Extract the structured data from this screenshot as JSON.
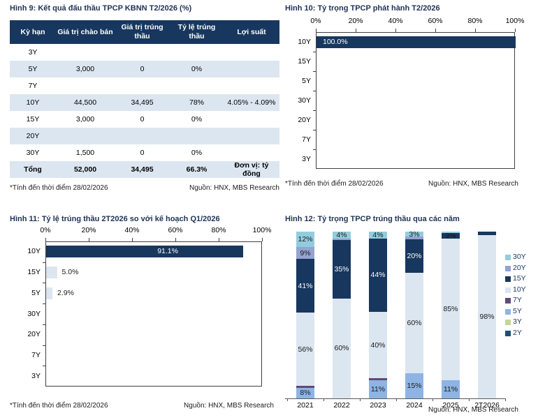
{
  "fig9": {
    "title": "Hình 9: Kết quả đấu thầu TPCP KBNN T2/2026 (%)",
    "headers": [
      "Kỳ hạn",
      "Giá trị chào bán",
      "Giá trị trúng thầu",
      "Tỷ lệ trúng thầu",
      "Lợi suất"
    ],
    "rows": [
      [
        "3Y",
        "",
        "",
        "",
        ""
      ],
      [
        "5Y",
        "3,000",
        "0",
        "0%",
        ""
      ],
      [
        "7Y",
        "",
        "",
        "",
        ""
      ],
      [
        "10Y",
        "44,500",
        "34,495",
        "78%",
        "4.05% - 4.09%"
      ],
      [
        "15Y",
        "3,000",
        "0",
        "0%",
        ""
      ],
      [
        "20Y",
        "",
        "",
        "",
        ""
      ],
      [
        "30Y",
        "1,500",
        "0",
        "0%",
        ""
      ],
      [
        "Tổng",
        "52,000",
        "34,495",
        "66.3%",
        "Đơn vị: tỷ đồng"
      ]
    ],
    "footnote_left": "*Tính đến thời điểm 28/02/2026",
    "footnote_right": "Nguồn: HNX, MBS Research"
  },
  "fig10": {
    "title": "Hình 10: Tỷ trọng TPCP phát hành T2/2026",
    "footnote_left": "*Tính đến thời điểm 28/02/2026",
    "footnote_right": "Nguồn: HNX, MBS Research"
  },
  "fig11": {
    "title": "Hình 11: Tỷ lệ trúng thầu 2T2026 so với kế hoạch Q1/2026",
    "footnote_left": "*Tính đến thời điểm 28/02/2026",
    "footnote_right": "Nguồn: HNX, MBS Research"
  },
  "fig12": {
    "title": "Hình 12: Tỷ trọng TPCP trúng thầu qua các năm",
    "footnote_right": "Nguồn: HNX, MBS Research"
  },
  "chart_data": [
    {
      "id": "fig10",
      "type": "bar",
      "orientation": "horizontal",
      "title": "Hình 10: Tỷ trọng TPCP phát hành T2/2026",
      "categories": [
        "10Y",
        "15Y",
        "5Y",
        "30Y",
        "20Y",
        "7Y",
        "3Y"
      ],
      "values": [
        100.0,
        0,
        0,
        0,
        0,
        0,
        0
      ],
      "labels": [
        "100.0%",
        "",
        "",
        "",
        "",
        "",
        ""
      ],
      "bar_colors": [
        "#17375E",
        "#DCE6F1",
        "#DCE6F1",
        "#DCE6F1",
        "#DCE6F1",
        "#DCE6F1",
        "#DCE6F1"
      ],
      "label_align": "inside-start",
      "inside_label_color": "#FFFFFF",
      "xlim": [
        0,
        100
      ],
      "xticks": [
        "0%",
        "20%",
        "40%",
        "60%",
        "80%",
        "100%"
      ],
      "grid": false
    },
    {
      "id": "fig11",
      "type": "bar",
      "orientation": "horizontal",
      "title": "Hình 11: Tỷ lệ trúng thầu 2T2026 so với kế hoạch Q1/2026",
      "categories": [
        "10Y",
        "15Y",
        "5Y",
        "30Y",
        "20Y",
        "7Y",
        "3Y"
      ],
      "values": [
        91.1,
        5.0,
        2.9,
        0,
        0,
        0,
        0
      ],
      "labels": [
        "91.1%",
        "5.0%",
        "2.9%",
        "",
        "",
        "",
        ""
      ],
      "bar_colors": [
        "#17375E",
        "#DCE6F1",
        "#DCE6F1",
        "#DCE6F1",
        "#DCE6F1",
        "#DCE6F1",
        "#DCE6F1"
      ],
      "label_align": "inside-center",
      "inside_label_color": "#FFFFFF",
      "xlim": [
        0,
        100
      ],
      "xticks": [
        "0%",
        "20%",
        "40%",
        "60%",
        "80%",
        "100%"
      ],
      "grid": false
    },
    {
      "id": "fig12",
      "type": "stacked-bar",
      "orientation": "vertical",
      "title": "Hình 12: Tỷ trọng TPCP trúng thầu qua các năm",
      "categories": [
        "2021",
        "2022",
        "2023",
        "2024",
        "2025",
        "2T2026"
      ],
      "stack_order_bottom_to_top": [
        "5Y",
        "7Y",
        "10Y",
        "15Y",
        "20Y",
        "30Y"
      ],
      "series": [
        {
          "name": "5Y",
          "color": "#8EB4E3",
          "label_color": "#1A1A1A",
          "values": [
            8,
            0,
            11,
            15,
            11,
            0
          ],
          "labels": [
            "8%",
            "",
            "11%",
            "15%",
            "11%",
            ""
          ]
        },
        {
          "name": "7Y",
          "color": "#5F497A",
          "label_color": "#FFFFFF",
          "values": [
            1.5,
            0,
            1,
            0,
            0,
            0
          ],
          "labels": [
            "",
            "",
            "",
            "",
            "",
            ""
          ]
        },
        {
          "name": "10Y",
          "color": "#DCE6F1",
          "label_color": "#1A1A1A",
          "values": [
            56,
            60,
            40,
            60,
            85,
            98
          ],
          "labels": [
            "56%",
            "60%",
            "40%",
            "60%",
            "85%",
            "98%"
          ]
        },
        {
          "name": "15Y",
          "color": "#17375E",
          "label_color": "#FFFFFF",
          "values": [
            41,
            35,
            44,
            20,
            3,
            2
          ],
          "labels": [
            "41%",
            "35%",
            "44%",
            "20%",
            "3%",
            ""
          ]
        },
        {
          "name": "20Y",
          "color": "#95A3D0",
          "label_color": "#1A1A1A",
          "values": [
            9,
            1,
            0,
            1.5,
            0,
            0
          ],
          "labels": [
            "9%",
            "",
            "",
            "",
            "",
            ""
          ]
        },
        {
          "name": "30Y",
          "color": "#93CDDD",
          "label_color": "#1A1A1A",
          "values": [
            12,
            4,
            4,
            3,
            1,
            0
          ],
          "labels": [
            "12%",
            "4%",
            "4%",
            "3%",
            "",
            ""
          ]
        }
      ],
      "label_color_overrides": [
        {
          "series": "15Y",
          "index": 4,
          "color": "#1A1A1A"
        }
      ],
      "legend": [
        {
          "label": "30Y",
          "color": "#93CDDD"
        },
        {
          "label": "20Y",
          "color": "#95A3D0"
        },
        {
          "label": "15Y",
          "color": "#17375E"
        },
        {
          "label": "10Y",
          "color": "#DCE6F1"
        },
        {
          "label": "7Y",
          "color": "#5F497A"
        },
        {
          "label": "5Y",
          "color": "#8EB4E3"
        },
        {
          "label": "3Y",
          "color": "#C3D69B"
        },
        {
          "label": "2Y",
          "color": "#1F4E79"
        }
      ],
      "legend_position": "right",
      "grid": false
    }
  ]
}
